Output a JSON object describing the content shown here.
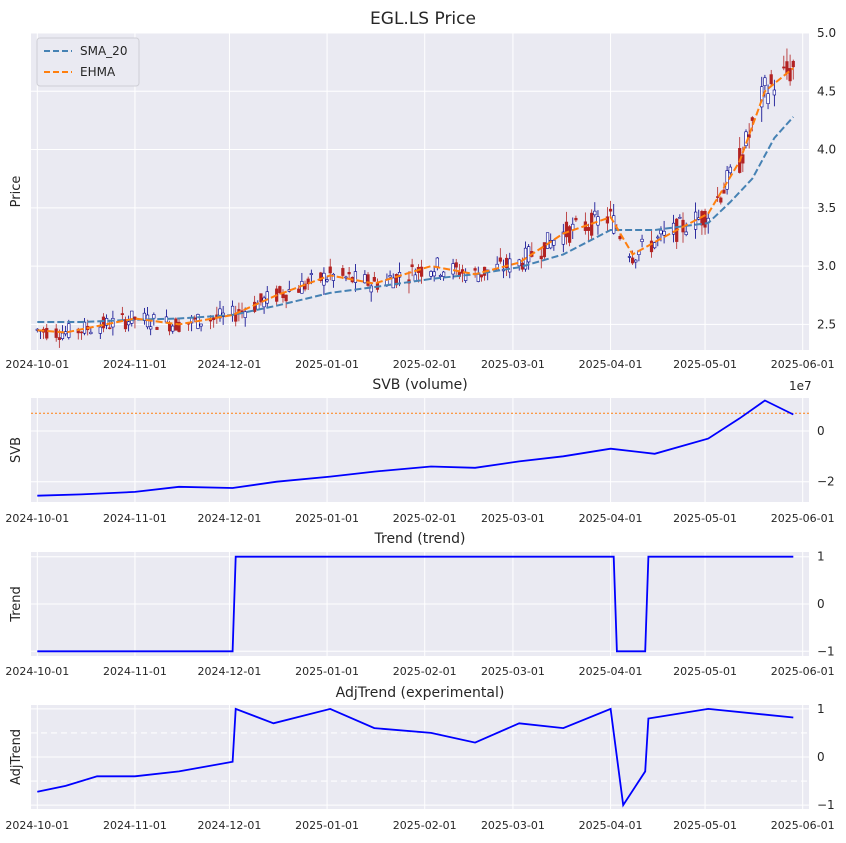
{
  "figure_title": "EGL.LS Price",
  "x_tick_labels": [
    "2024-10-01",
    "2024-11-01",
    "2024-12-01",
    "2025-01-01",
    "2025-02-01",
    "2025-03-01",
    "2025-04-01",
    "2025-05-01",
    "2025-06-01"
  ],
  "colors": {
    "background": "#eaeaf2",
    "grid": "#ffffff",
    "line": "#0000ff",
    "candle_up": "#00008b",
    "candle_down": "#b22222",
    "sma": "#4682b4",
    "ehma": "#ff7f0e",
    "threshold": "#ff7f0e"
  },
  "chart_data": [
    {
      "type": "candlestick",
      "title": "",
      "ylabel": "Price",
      "xlim": [
        "2024-09-29",
        "2025-06-03"
      ],
      "ylim": [
        2.28,
        5.0
      ],
      "yticks": [
        2.5,
        3.0,
        3.5,
        4.0,
        4.5,
        5.0
      ],
      "ytick_labels": [
        "2.5",
        "3.0",
        "3.5",
        "4.0",
        "4.5",
        "5.0"
      ],
      "legend": {
        "placement": "top-left",
        "entries": [
          "SMA_20",
          "EHMA"
        ]
      },
      "series": [
        {
          "name": "SMA_20",
          "style": "dashed",
          "points": [
            [
              "2024-10-01",
              2.52
            ],
            [
              "2024-10-15",
              2.52
            ],
            [
              "2024-11-01",
              2.54
            ],
            [
              "2024-11-15",
              2.55
            ],
            [
              "2024-12-02",
              2.58
            ],
            [
              "2024-12-16",
              2.66
            ],
            [
              "2025-01-02",
              2.77
            ],
            [
              "2025-01-16",
              2.82
            ],
            [
              "2025-02-03",
              2.89
            ],
            [
              "2025-02-17",
              2.93
            ],
            [
              "2025-03-03",
              2.99
            ],
            [
              "2025-03-17",
              3.1
            ],
            [
              "2025-04-01",
              3.31
            ],
            [
              "2025-04-15",
              3.31
            ],
            [
              "2025-05-02",
              3.37
            ],
            [
              "2025-05-09",
              3.55
            ],
            [
              "2025-05-16",
              3.75
            ],
            [
              "2025-05-23",
              4.1
            ],
            [
              "2025-05-29",
              4.28
            ]
          ]
        },
        {
          "name": "EHMA",
          "style": "dashed",
          "points": [
            [
              "2024-10-01",
              2.45
            ],
            [
              "2024-10-10",
              2.43
            ],
            [
              "2024-11-01",
              2.55
            ],
            [
              "2024-11-15",
              2.5
            ],
            [
              "2024-12-02",
              2.58
            ],
            [
              "2024-12-16",
              2.75
            ],
            [
              "2025-01-02",
              2.92
            ],
            [
              "2025-01-16",
              2.85
            ],
            [
              "2025-02-03",
              3.0
            ],
            [
              "2025-02-17",
              2.93
            ],
            [
              "2025-03-03",
              3.03
            ],
            [
              "2025-03-17",
              3.28
            ],
            [
              "2025-04-01",
              3.42
            ],
            [
              "2025-04-08",
              3.1
            ],
            [
              "2025-04-20",
              3.28
            ],
            [
              "2025-05-02",
              3.45
            ],
            [
              "2025-05-12",
              3.9
            ],
            [
              "2025-05-20",
              4.5
            ],
            [
              "2025-05-29",
              4.7
            ]
          ]
        }
      ],
      "candles_summary": {
        "start_close": 2.5,
        "end_close": 4.45,
        "high": 4.88,
        "low": 2.4
      }
    },
    {
      "type": "line",
      "title": "SVB (volume)",
      "ylabel": "SVB",
      "offset_text": "1e7",
      "ylim": [
        -2.8,
        1.3
      ],
      "yticks": [
        -2,
        0
      ],
      "ytick_labels": [
        "−2",
        "0"
      ],
      "threshold_line": 0.7,
      "points": [
        [
          "2024-10-01",
          -2.55
        ],
        [
          "2024-10-15",
          -2.5
        ],
        [
          "2024-11-01",
          -2.4
        ],
        [
          "2024-11-15",
          -2.2
        ],
        [
          "2024-12-02",
          -2.25
        ],
        [
          "2024-12-16",
          -2.0
        ],
        [
          "2025-01-02",
          -1.8
        ],
        [
          "2025-01-16",
          -1.6
        ],
        [
          "2025-02-03",
          -1.4
        ],
        [
          "2025-02-17",
          -1.45
        ],
        [
          "2025-03-03",
          -1.2
        ],
        [
          "2025-03-17",
          -1.0
        ],
        [
          "2025-04-01",
          -0.7
        ],
        [
          "2025-04-15",
          -0.9
        ],
        [
          "2025-05-02",
          -0.3
        ],
        [
          "2025-05-12",
          0.5
        ],
        [
          "2025-05-20",
          1.2
        ],
        [
          "2025-05-29",
          0.65
        ]
      ]
    },
    {
      "type": "line",
      "title": "Trend (trend)",
      "ylabel": "Trend",
      "ylim": [
        -1.1,
        1.1
      ],
      "yticks": [
        -1,
        0,
        1
      ],
      "ytick_labels": [
        "−1",
        "0",
        "1"
      ],
      "points": [
        [
          "2024-10-01",
          -1
        ],
        [
          "2024-12-02",
          -1
        ],
        [
          "2024-12-03",
          1
        ],
        [
          "2025-04-02",
          1
        ],
        [
          "2025-04-03",
          -1
        ],
        [
          "2025-04-12",
          -1
        ],
        [
          "2025-04-13",
          1
        ],
        [
          "2025-05-29",
          1
        ]
      ]
    },
    {
      "type": "line",
      "title": "AdjTrend (experimental)",
      "ylabel": "AdjTrend",
      "ylim": [
        -1.08,
        1.08
      ],
      "yticks": [
        -1,
        0,
        1
      ],
      "ytick_labels": [
        "−1",
        "0",
        "1"
      ],
      "threshold_lines": [
        0.5,
        -0.5
      ],
      "points": [
        [
          "2024-10-01",
          -0.72
        ],
        [
          "2024-10-10",
          -0.6
        ],
        [
          "2024-10-20",
          -0.4
        ],
        [
          "2024-11-01",
          -0.4
        ],
        [
          "2024-11-15",
          -0.3
        ],
        [
          "2024-12-02",
          -0.1
        ],
        [
          "2024-12-03",
          1.0
        ],
        [
          "2024-12-15",
          0.7
        ],
        [
          "2025-01-02",
          1.0
        ],
        [
          "2025-01-16",
          0.6
        ],
        [
          "2025-02-03",
          0.5
        ],
        [
          "2025-02-17",
          0.3
        ],
        [
          "2025-03-03",
          0.7
        ],
        [
          "2025-03-17",
          0.6
        ],
        [
          "2025-04-01",
          1.0
        ],
        [
          "2025-04-05",
          -1.0
        ],
        [
          "2025-04-12",
          -0.3
        ],
        [
          "2025-04-13",
          0.8
        ],
        [
          "2025-05-02",
          1.0
        ],
        [
          "2025-05-29",
          0.82
        ]
      ]
    }
  ]
}
